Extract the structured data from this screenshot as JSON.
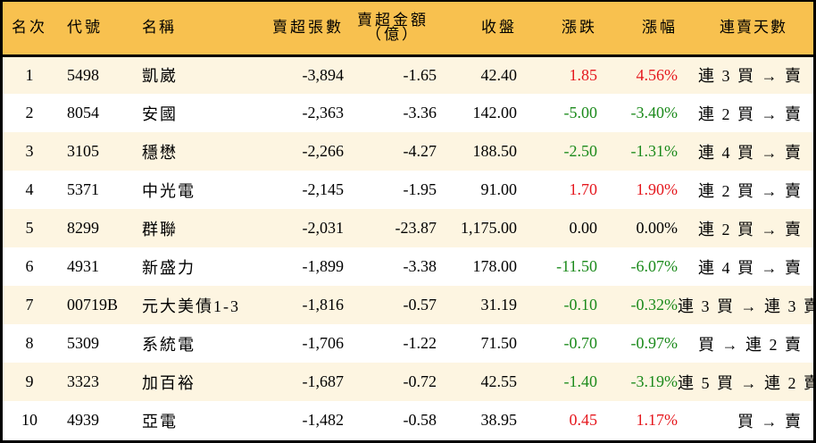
{
  "colors": {
    "header_bg": "#f8c14f",
    "row_odd_bg": "#fdf5e1",
    "row_even_bg": "#ffffff",
    "up": "#e5171d",
    "down": "#1b8a1b",
    "border": "#000000"
  },
  "table": {
    "headers": {
      "rank": "名次",
      "code": "代號",
      "name": "名稱",
      "net_sell_lots": "賣超張數",
      "net_sell_amount_line1": "賣超金額",
      "net_sell_amount_line2": "（億）",
      "close": "收盤",
      "change": "漲跌",
      "change_pct": "漲幅",
      "streak": "連賣天數"
    },
    "rows": [
      {
        "rank": "1",
        "code": "5498",
        "name": "凱崴",
        "lots": "-3,894",
        "amount": "-1.65",
        "close": "42.40",
        "change": "1.85",
        "pct": "4.56%",
        "dir": "up",
        "streak": "連 3 買 → 賣"
      },
      {
        "rank": "2",
        "code": "8054",
        "name": "安國",
        "lots": "-2,363",
        "amount": "-3.36",
        "close": "142.00",
        "change": "-5.00",
        "pct": "-3.40%",
        "dir": "down",
        "streak": "連 2 買 → 賣"
      },
      {
        "rank": "3",
        "code": "3105",
        "name": "穩懋",
        "lots": "-2,266",
        "amount": "-4.27",
        "close": "188.50",
        "change": "-2.50",
        "pct": "-1.31%",
        "dir": "down",
        "streak": "連 4 買 → 賣"
      },
      {
        "rank": "4",
        "code": "5371",
        "name": "中光電",
        "lots": "-2,145",
        "amount": "-1.95",
        "close": "91.00",
        "change": "1.70",
        "pct": "1.90%",
        "dir": "up",
        "streak": "連 2 買 → 賣"
      },
      {
        "rank": "5",
        "code": "8299",
        "name": "群聯",
        "lots": "-2,031",
        "amount": "-23.87",
        "close": "1,175.00",
        "change": "0.00",
        "pct": "0.00%",
        "dir": "flat",
        "streak": "連 2 買 → 賣"
      },
      {
        "rank": "6",
        "code": "4931",
        "name": "新盛力",
        "lots": "-1,899",
        "amount": "-3.38",
        "close": "178.00",
        "change": "-11.50",
        "pct": "-6.07%",
        "dir": "down",
        "streak": "連 4 買 → 賣"
      },
      {
        "rank": "7",
        "code": "00719B",
        "name": "元大美債1-3",
        "lots": "-1,816",
        "amount": "-0.57",
        "close": "31.19",
        "change": "-0.10",
        "pct": "-0.32%",
        "dir": "down",
        "streak": "連 3 買 → 連 3 賣"
      },
      {
        "rank": "8",
        "code": "5309",
        "name": "系統電",
        "lots": "-1,706",
        "amount": "-1.22",
        "close": "71.50",
        "change": "-0.70",
        "pct": "-0.97%",
        "dir": "down",
        "streak": "買 → 連 2 賣"
      },
      {
        "rank": "9",
        "code": "3323",
        "name": "加百裕",
        "lots": "-1,687",
        "amount": "-0.72",
        "close": "42.55",
        "change": "-1.40",
        "pct": "-3.19%",
        "dir": "down",
        "streak": "連 5 買 → 連 2 賣"
      },
      {
        "rank": "10",
        "code": "4939",
        "name": "亞電",
        "lots": "-1,482",
        "amount": "-0.58",
        "close": "38.95",
        "change": "0.45",
        "pct": "1.17%",
        "dir": "up",
        "streak": "買 → 賣"
      }
    ]
  }
}
